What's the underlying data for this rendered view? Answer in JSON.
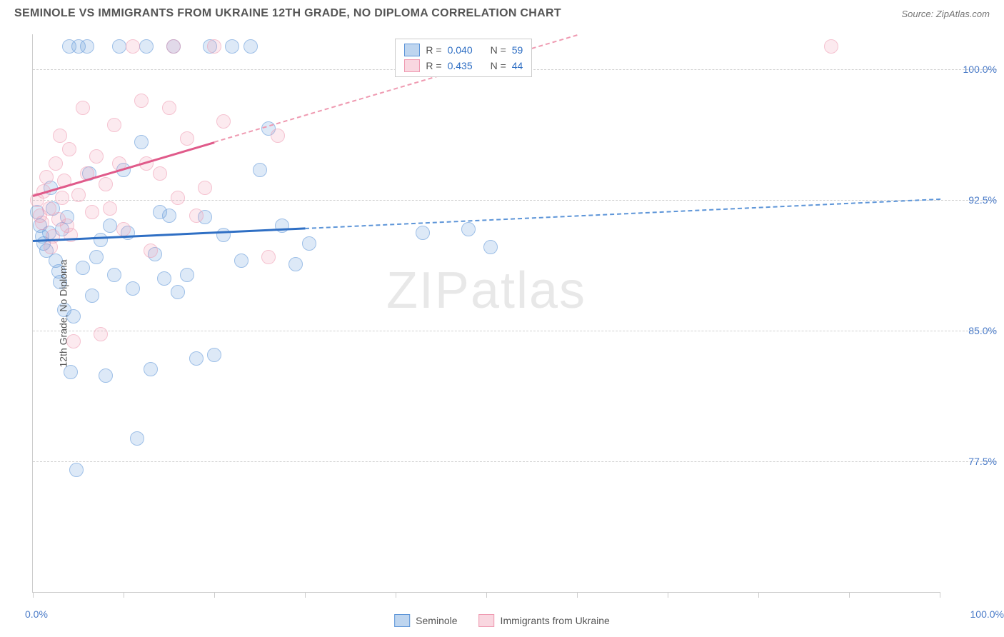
{
  "header": {
    "title": "SEMINOLE VS IMMIGRANTS FROM UKRAINE 12TH GRADE, NO DIPLOMA CORRELATION CHART",
    "source_label": "Source: ",
    "source_value": "ZipAtlas.com"
  },
  "chart": {
    "y_axis_label": "12th Grade, No Diploma",
    "x_min_label": "0.0%",
    "x_max_label": "100.0%",
    "xlim": [
      0,
      100
    ],
    "ylim": [
      70,
      102
    ],
    "y_gridlines": [
      77.5,
      85.0,
      92.5,
      100.0
    ],
    "y_tick_labels": [
      "77.5%",
      "85.0%",
      "92.5%",
      "100.0%"
    ],
    "x_ticks": [
      0,
      10,
      20,
      30,
      40,
      50,
      60,
      70,
      80,
      90,
      100
    ],
    "grid_color": "#d0d0d0",
    "axis_color": "#cccccc",
    "tick_label_color": "#4a7bc8",
    "background_color": "#ffffff"
  },
  "series": [
    {
      "name": "Seminole",
      "color": "#5d95d8",
      "fill_rgba": "rgba(93,149,216,0.35)",
      "marker_radius_px": 10,
      "R": "0.040",
      "N": "59",
      "trend": {
        "x1": 0,
        "y1": 90.2,
        "solid_until_x": 30,
        "x2": 100,
        "y2": 92.6,
        "solid_color": "#2f6fc4"
      },
      "points": [
        [
          0.5,
          91.8
        ],
        [
          0.8,
          91.0
        ],
        [
          1.0,
          90.4
        ],
        [
          1.2,
          90.0
        ],
        [
          1.5,
          89.6
        ],
        [
          1.8,
          90.6
        ],
        [
          2.0,
          93.2
        ],
        [
          2.2,
          92.0
        ],
        [
          2.5,
          89.0
        ],
        [
          2.8,
          88.4
        ],
        [
          3.0,
          87.8
        ],
        [
          3.2,
          90.8
        ],
        [
          3.5,
          86.2
        ],
        [
          3.8,
          91.5
        ],
        [
          4.0,
          101.3
        ],
        [
          4.2,
          82.6
        ],
        [
          4.5,
          85.8
        ],
        [
          4.8,
          77.0
        ],
        [
          5.0,
          101.3
        ],
        [
          5.5,
          88.6
        ],
        [
          6.0,
          101.3
        ],
        [
          6.2,
          94.0
        ],
        [
          6.5,
          87.0
        ],
        [
          7.0,
          89.2
        ],
        [
          7.5,
          90.2
        ],
        [
          8.0,
          82.4
        ],
        [
          8.5,
          91.0
        ],
        [
          9.0,
          88.2
        ],
        [
          9.5,
          101.3
        ],
        [
          10.0,
          94.2
        ],
        [
          10.5,
          90.6
        ],
        [
          11.0,
          87.4
        ],
        [
          11.5,
          78.8
        ],
        [
          12.0,
          95.8
        ],
        [
          12.5,
          101.3
        ],
        [
          13.0,
          82.8
        ],
        [
          13.5,
          89.4
        ],
        [
          14.0,
          91.8
        ],
        [
          14.5,
          88.0
        ],
        [
          15.0,
          91.6
        ],
        [
          15.5,
          101.3
        ],
        [
          16.0,
          87.2
        ],
        [
          17.0,
          88.2
        ],
        [
          18.0,
          83.4
        ],
        [
          19.0,
          91.5
        ],
        [
          19.5,
          101.3
        ],
        [
          20.0,
          83.6
        ],
        [
          21.0,
          90.5
        ],
        [
          22.0,
          101.3
        ],
        [
          23.0,
          89.0
        ],
        [
          24.0,
          101.3
        ],
        [
          25.0,
          94.2
        ],
        [
          26.0,
          96.6
        ],
        [
          27.5,
          91.0
        ],
        [
          29.0,
          88.8
        ],
        [
          30.5,
          90.0
        ],
        [
          43.0,
          90.6
        ],
        [
          48.0,
          90.8
        ],
        [
          50.5,
          89.8
        ]
      ]
    },
    {
      "name": "Immigrants from Ukraine",
      "color": "#ef9ab1",
      "fill_rgba": "rgba(239,154,177,0.35)",
      "marker_radius_px": 10,
      "R": "0.435",
      "N": "44",
      "trend": {
        "x1": 0,
        "y1": 92.8,
        "solid_until_x": 20,
        "x2": 60,
        "y2": 102.0,
        "solid_color": "#e05a8a"
      },
      "points": [
        [
          0.5,
          92.5
        ],
        [
          0.8,
          91.6
        ],
        [
          1.0,
          91.2
        ],
        [
          1.2,
          93.0
        ],
        [
          1.5,
          93.8
        ],
        [
          1.8,
          92.0
        ],
        [
          2.0,
          89.8
        ],
        [
          2.2,
          90.4
        ],
        [
          2.5,
          94.6
        ],
        [
          2.8,
          91.4
        ],
        [
          3.0,
          96.2
        ],
        [
          3.2,
          92.6
        ],
        [
          3.5,
          93.6
        ],
        [
          3.8,
          91.0
        ],
        [
          4.0,
          95.4
        ],
        [
          4.2,
          90.5
        ],
        [
          4.5,
          84.4
        ],
        [
          5.0,
          92.8
        ],
        [
          5.5,
          97.8
        ],
        [
          6.0,
          94.0
        ],
        [
          6.5,
          91.8
        ],
        [
          7.0,
          95.0
        ],
        [
          7.5,
          84.8
        ],
        [
          8.0,
          93.4
        ],
        [
          8.5,
          92.0
        ],
        [
          9.0,
          96.8
        ],
        [
          9.5,
          94.6
        ],
        [
          10.0,
          90.8
        ],
        [
          11.0,
          101.3
        ],
        [
          12.0,
          98.2
        ],
        [
          12.5,
          94.6
        ],
        [
          13.0,
          89.6
        ],
        [
          14.0,
          94.0
        ],
        [
          15.0,
          97.8
        ],
        [
          15.5,
          101.3
        ],
        [
          16.0,
          92.6
        ],
        [
          17.0,
          96.0
        ],
        [
          18.0,
          91.6
        ],
        [
          19.0,
          93.2
        ],
        [
          20.0,
          101.3
        ],
        [
          21.0,
          97.0
        ],
        [
          26.0,
          89.2
        ],
        [
          27.0,
          96.2
        ],
        [
          88.0,
          101.3
        ]
      ]
    }
  ],
  "legend_top": {
    "rows": [
      {
        "swatch": "blue",
        "R_label": "R =",
        "R_value": "0.040",
        "N_label": "N =",
        "N_value": "59"
      },
      {
        "swatch": "pink",
        "R_label": "R =",
        "R_value": "0.435",
        "N_label": "N =",
        "N_value": "44"
      }
    ]
  },
  "legend_bottom": {
    "items": [
      {
        "swatch": "blue",
        "label": "Seminole"
      },
      {
        "swatch": "pink",
        "label": "Immigrants from Ukraine"
      }
    ]
  },
  "watermark": {
    "zip": "ZIP",
    "atlas": "atlas"
  }
}
